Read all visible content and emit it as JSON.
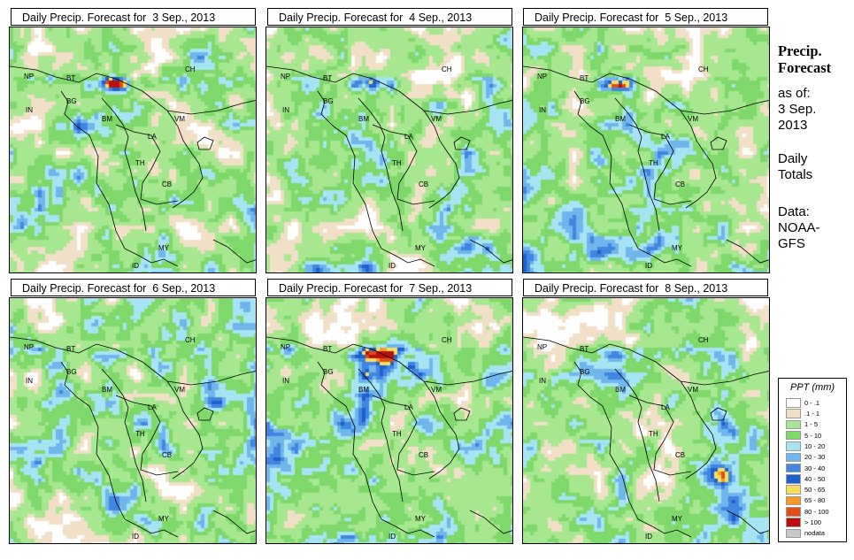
{
  "panels": [
    {
      "title": "Daily Precip. Forecast for  3 Sep., 2013"
    },
    {
      "title": "Daily Precip. Forecast for  4 Sep., 2013"
    },
    {
      "title": "Daily Precip. Forecast for  5 Sep., 2013"
    },
    {
      "title": "Daily Precip. Forecast for  6 Sep., 2013"
    },
    {
      "title": "Daily Precip. Forecast for  7 Sep., 2013"
    },
    {
      "title": "Daily Precip. Forecast for  8 Sep., 2013"
    }
  ],
  "country_labels": [
    "NP",
    "BT",
    "BG",
    "IN",
    "CH",
    "BM",
    "VM",
    "LA",
    "TH",
    "CB",
    "MY",
    "ID"
  ],
  "sidebar": {
    "title_line1": "Precip.",
    "title_line2": "Forecast",
    "asof_line1": "as of:",
    "asof_line2": "3 Sep.",
    "asof_line3": "2013",
    "daily_line1": "Daily",
    "daily_line2": "Totals",
    "data_line1": "Data:",
    "data_line2": "NOAA-",
    "data_line3": "GFS"
  },
  "legend": {
    "title": "PPT (mm)",
    "items": [
      {
        "label": "0 - .1",
        "color": "#ffffff"
      },
      {
        "label": ".1 - 1",
        "color": "#f2dfc7"
      },
      {
        "label": "1 - 5",
        "color": "#a6e78f"
      },
      {
        "label": "5 - 10",
        "color": "#7fd86a"
      },
      {
        "label": "10 - 20",
        "color": "#a7e4f3"
      },
      {
        "label": "20 - 30",
        "color": "#6fb6ec"
      },
      {
        "label": "30 - 40",
        "color": "#3f86e0"
      },
      {
        "label": "40 - 50",
        "color": "#1f5fcf"
      },
      {
        "label": "50 - 65",
        "color": "#f7df5d"
      },
      {
        "label": "65 - 80",
        "color": "#f59a27"
      },
      {
        "label": "80 - 100",
        "color": "#e04e13"
      },
      {
        "label": "> 100",
        "color": "#b8100c"
      },
      {
        "label": "nodata",
        "color": "#c8c8c8"
      }
    ]
  }
}
